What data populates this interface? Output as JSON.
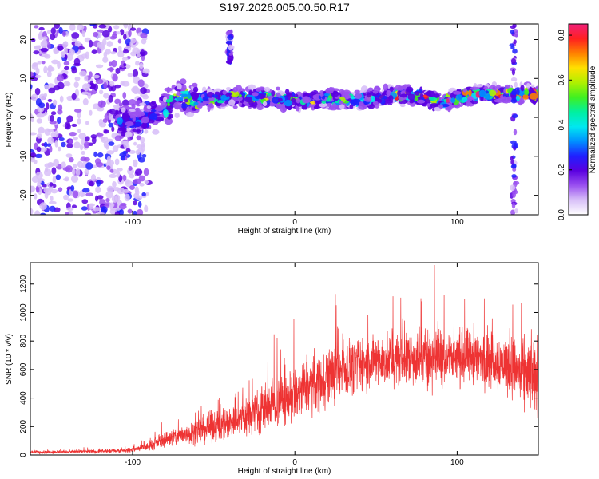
{
  "figure_title": "S197.2026.005.00.50.R17",
  "chart_data": [
    {
      "id": "spectrogram",
      "type": "heatmap",
      "title": "",
      "xlabel": "Height of straight line (km)",
      "ylabel": "Frequency (Hz)",
      "xlim": [
        -163,
        150
      ],
      "ylim": [
        -25,
        24
      ],
      "x_ticks": [
        -100,
        0,
        100
      ],
      "y_ticks": [
        -20,
        -10,
        0,
        10,
        20
      ],
      "ridge": {
        "description": "dominant frequency band vs height",
        "x": [
          -100,
          -90,
          -80,
          -75,
          -70,
          -60,
          -50,
          -40,
          -30,
          -20,
          -10,
          0,
          10,
          20,
          30,
          40,
          50,
          60,
          70,
          80,
          90,
          100,
          110,
          120,
          130,
          140,
          150
        ],
        "y": [
          -1,
          0,
          2,
          4,
          5,
          4.5,
          5,
          5,
          5,
          5,
          4.5,
          4.5,
          4.5,
          5,
          4.5,
          4.5,
          5,
          5.5,
          6,
          5,
          4,
          5,
          6,
          6,
          6,
          6,
          6
        ]
      },
      "noise_region_x": [
        -163,
        -100
      ],
      "colorbar": {
        "label": "Normalized spectral amplitude",
        "range": [
          0,
          0.85
        ],
        "ticks": [
          0.0,
          0.2,
          0.4,
          0.6,
          0.8
        ],
        "tick_labels": [
          "0.0",
          "0.2",
          "0.4",
          "0.6",
          "0.8"
        ],
        "colors": [
          "#ffffff",
          "#d8c0f8",
          "#9a50f0",
          "#5a00e0",
          "#2020ff",
          "#0090ff",
          "#00e8f0",
          "#00f0a0",
          "#40f020",
          "#b0f000",
          "#ffe000",
          "#ff8000",
          "#ff2020",
          "#f0207a"
        ]
      }
    },
    {
      "id": "snr",
      "type": "line",
      "title": "",
      "xlabel": "Height of straight line (km)",
      "ylabel": "SNR (10 * v/v)",
      "xlim": [
        -163,
        150
      ],
      "ylim": [
        0,
        1350
      ],
      "x_ticks": [
        -100,
        0,
        100
      ],
      "y_ticks": [
        0,
        200,
        400,
        600,
        800,
        1000,
        1200
      ],
      "series": [
        {
          "name": "SNR",
          "color": "#ee3333",
          "envelope_x": [
            -163,
            -120,
            -100,
            -90,
            -80,
            -70,
            -60,
            -50,
            -40,
            -30,
            -20,
            -10,
            0,
            10,
            20,
            30,
            40,
            50,
            60,
            70,
            80,
            90,
            100,
            110,
            120,
            130,
            140,
            150
          ],
          "envelope_mean": [
            20,
            25,
            35,
            60,
            110,
            140,
            170,
            200,
            230,
            270,
            340,
            370,
            420,
            490,
            550,
            610,
            640,
            660,
            670,
            680,
            690,
            700,
            670,
            690,
            670,
            640,
            560,
            560
          ],
          "envelope_spread": [
            15,
            15,
            20,
            35,
            70,
            90,
            110,
            130,
            150,
            170,
            200,
            220,
            240,
            250,
            250,
            240,
            230,
            220,
            220,
            230,
            260,
            260,
            240,
            230,
            230,
            240,
            300,
            320
          ]
        }
      ]
    }
  ]
}
